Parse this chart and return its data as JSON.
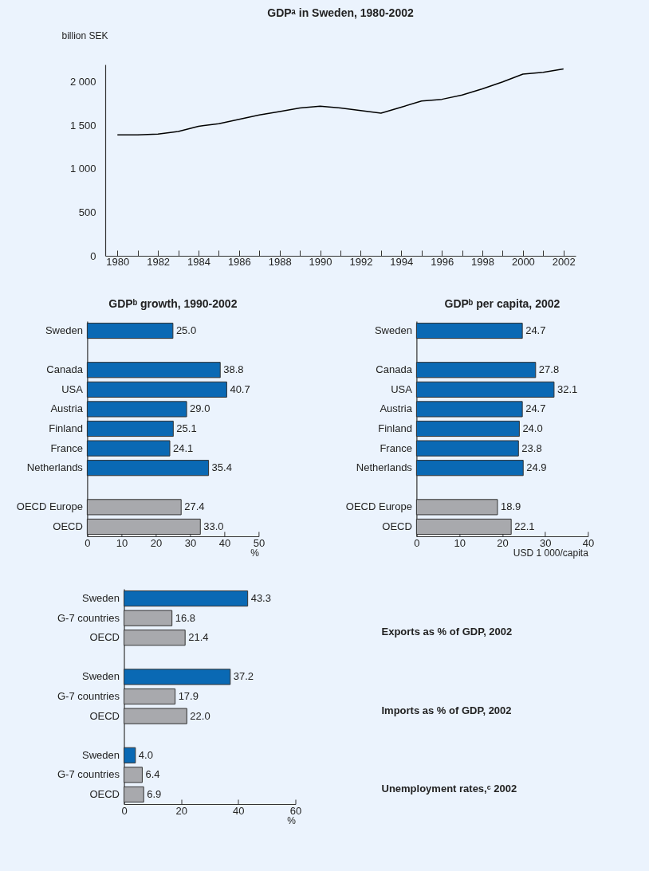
{
  "chart_data": [
    {
      "type": "line",
      "title": "GDPᵃ in Sweden, 1980-2002",
      "ylabel": "billion SEK",
      "color": "#000000",
      "x": [
        1980,
        1981,
        1982,
        1983,
        1984,
        1985,
        1986,
        1987,
        1988,
        1989,
        1990,
        1991,
        1992,
        1993,
        1994,
        1995,
        1996,
        1997,
        1998,
        1999,
        2000,
        2001,
        2002
      ],
      "values": [
        1390,
        1390,
        1400,
        1430,
        1490,
        1520,
        1570,
        1620,
        1660,
        1700,
        1720,
        1700,
        1670,
        1640,
        1710,
        1780,
        1800,
        1850,
        1920,
        2000,
        2090,
        2110,
        2150
      ],
      "xlim": [
        1979.4,
        2002.6
      ],
      "xticks": [
        1980,
        {
          "value": 1981,
          "label": null
        },
        1982,
        {
          "value": 1983,
          "label": null
        },
        1984,
        {
          "value": 1985,
          "label": null
        },
        1986,
        {
          "value": 1987,
          "label": null
        },
        1988,
        {
          "value": 1989,
          "label": null
        },
        1990,
        {
          "value": 1991,
          "label": null
        },
        1992,
        {
          "value": 1993,
          "label": null
        },
        1994,
        {
          "value": 1995,
          "label": null
        },
        1996,
        {
          "value": 1997,
          "label": null
        },
        1998,
        {
          "value": 1999,
          "label": null
        },
        2000,
        {
          "value": 2001,
          "label": null
        },
        2002
      ],
      "ylim": [
        0,
        2200
      ],
      "yticks": [
        0,
        500,
        {
          "value": 1000,
          "label": "1 000"
        },
        {
          "value": 1500,
          "label": "1 500"
        },
        {
          "value": 2000,
          "label": "2 000"
        }
      ]
    },
    {
      "type": "bar",
      "orientation": "horizontal",
      "title": "GDPᵇ growth, 1990-2002",
      "xlabel": "%",
      "categories": [
        "Sweden",
        null,
        "Canada",
        "USA",
        "Austria",
        "Finland",
        "France",
        "Netherlands",
        null,
        "OECD Europe",
        "OECD"
      ],
      "values": [
        25.0,
        null,
        38.8,
        40.7,
        29.0,
        25.1,
        24.1,
        35.4,
        null,
        27.4,
        33.0
      ],
      "value_labels": [
        "25.0",
        null,
        "38.8",
        "40.7",
        "29.0",
        "25.1",
        "24.1",
        "35.4",
        null,
        "27.4",
        "33.0"
      ],
      "colors": [
        "#0a69b4",
        null,
        "#0a69b4",
        "#0a69b4",
        "#0a69b4",
        "#0a69b4",
        "#0a69b4",
        "#0a69b4",
        null,
        "#a8a9ad",
        "#a8a9ad"
      ],
      "xlim": [
        0,
        50
      ],
      "xticks": [
        0,
        10,
        20,
        30,
        40,
        50
      ]
    },
    {
      "type": "bar",
      "orientation": "horizontal",
      "title": "GDPᵇ per capita, 2002",
      "xlabel": "USD 1 000/capita",
      "categories": [
        "Sweden",
        null,
        "Canada",
        "USA",
        "Austria",
        "Finland",
        "France",
        "Netherlands",
        null,
        "OECD Europe",
        "OECD"
      ],
      "values": [
        24.7,
        null,
        27.8,
        32.1,
        24.7,
        24.0,
        23.8,
        24.9,
        null,
        18.9,
        22.1
      ],
      "value_labels": [
        "24.7",
        null,
        "27.8",
        "32.1",
        "24.7",
        "24.0",
        "23.8",
        "24.9",
        null,
        "18.9",
        "22.1"
      ],
      "colors": [
        "#0a69b4",
        null,
        "#0a69b4",
        "#0a69b4",
        "#0a69b4",
        "#0a69b4",
        "#0a69b4",
        "#0a69b4",
        null,
        "#a8a9ad",
        "#a8a9ad"
      ],
      "xlim": [
        0,
        40
      ],
      "xticks": [
        0,
        10,
        20,
        30,
        40
      ]
    },
    {
      "type": "bar",
      "orientation": "horizontal",
      "xlabel": "%",
      "categories": [
        "Sweden",
        "G-7 countries",
        "OECD",
        null,
        "Sweden",
        "G-7 countries",
        "OECD",
        null,
        "Sweden",
        "G-7 countries",
        "OECD"
      ],
      "values": [
        43.3,
        16.8,
        21.4,
        null,
        37.2,
        17.9,
        22.0,
        null,
        4.0,
        6.4,
        6.9
      ],
      "value_labels": [
        "43.3",
        "16.8",
        "21.4",
        null,
        "37.2",
        "17.9",
        "22.0",
        null,
        "4.0",
        "6.4",
        "6.9"
      ],
      "colors": [
        "#0a69b4",
        "#a8a9ad",
        "#a8a9ad",
        null,
        "#0a69b4",
        "#a8a9ad",
        "#a8a9ad",
        null,
        "#0a69b4",
        "#a8a9ad",
        "#a8a9ad"
      ],
      "xlim": [
        0,
        60
      ],
      "xticks": [
        0,
        20,
        40,
        60
      ],
      "annotations": [
        "Exports as % of GDP, 2002",
        "Imports as % of GDP, 2002",
        "Unemployment rates,ᶜ 2002"
      ]
    }
  ]
}
